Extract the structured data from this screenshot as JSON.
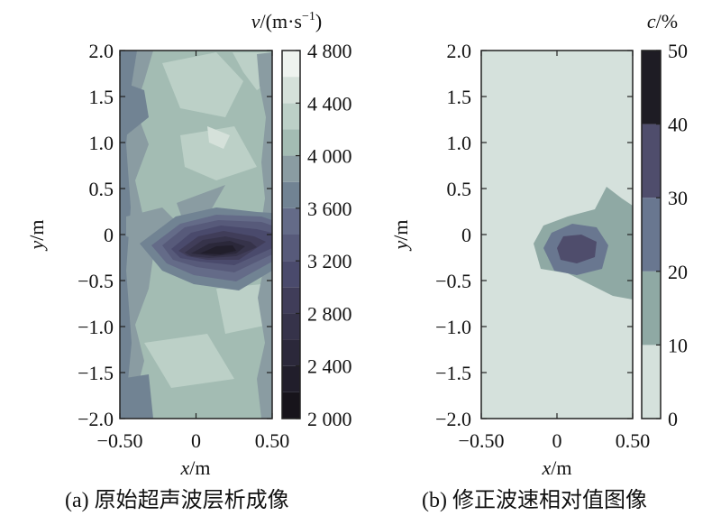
{
  "chart_data": [
    {
      "type": "heatmap",
      "subtitle": "(a) 原始超声波层析成像",
      "xlabel": "x/m",
      "ylabel": "y/m",
      "colorbar_label": "v/(m·s⁻¹)",
      "xlim": [
        -0.5,
        0.5
      ],
      "ylim": [
        -2.0,
        2.0
      ],
      "x_ticks": [
        "−0.50",
        "0",
        "0.50"
      ],
      "y_ticks": [
        "2.0",
        "1.5",
        "1.0",
        "0.5",
        "0",
        "−0.5",
        "−1.0",
        "−1.5",
        "−2.0"
      ],
      "colorbar_ticks": [
        "4 800",
        "4 400",
        "4 000",
        "3 600",
        "3 200",
        "2 800",
        "2 400",
        "2 000"
      ],
      "colorbar_range": [
        2000,
        4800
      ],
      "colorbar_levels": [
        2000,
        2200,
        2400,
        2600,
        2800,
        3000,
        3200,
        3400,
        3600,
        3800,
        4000,
        4200,
        4400,
        4600,
        4800
      ],
      "level_colors": [
        "#17141b",
        "#211e2b",
        "#2b283a",
        "#36334a",
        "#403d59",
        "#4a4a6c",
        "#575a7a",
        "#646b88",
        "#718393",
        "#8a9ca2",
        "#a3bcb3",
        "#bcd0c7",
        "#d5e1da",
        "#eef3ef"
      ],
      "regions": [
        {
          "feature": "background velocity",
          "v": 4000
        },
        {
          "feature": "low-velocity band near left edge",
          "v": 3700
        },
        {
          "feature": "anomaly halo",
          "x_range": [
            -0.3,
            0.5
          ],
          "y_range": [
            -0.45,
            0.1
          ],
          "v": 3200
        },
        {
          "feature": "anomaly core",
          "x_center": 0.15,
          "y_center": -0.2,
          "v": 2200
        }
      ]
    },
    {
      "type": "heatmap",
      "subtitle": "(b) 修正波速相对值图像",
      "xlabel": "x/m",
      "ylabel": "y/m",
      "colorbar_label": "c/%",
      "xlim": [
        -0.5,
        0.5
      ],
      "ylim": [
        -2.0,
        2.0
      ],
      "x_ticks": [
        "−0.50",
        "0",
        "0.50"
      ],
      "y_ticks": [
        "2.0",
        "1.5",
        "1.0",
        "0.5",
        "0",
        "−0.5",
        "−1.0",
        "−1.5",
        "−2.0"
      ],
      "colorbar_ticks": [
        "50",
        "40",
        "30",
        "20",
        "10",
        "0"
      ],
      "colorbar_range": [
        0,
        50
      ],
      "colorbar_levels": [
        0,
        10,
        20,
        30,
        40,
        50
      ],
      "level_colors": [
        "#d5e1dc",
        "#8fa9a4",
        "#697790",
        "#4f4d6c",
        "#1e1c24"
      ],
      "regions": [
        {
          "level_range": [
            0,
            10
          ],
          "feature": "background"
        },
        {
          "level_range": [
            10,
            20
          ],
          "x_range": [
            -0.25,
            0.5
          ],
          "y_range": [
            -0.68,
            0.55
          ]
        },
        {
          "level_range": [
            20,
            30
          ],
          "x_range": [
            -0.12,
            0.27
          ],
          "y_range": [
            -0.42,
            0.02
          ]
        },
        {
          "level_range": [
            30,
            40
          ],
          "x_center": 0.1,
          "y_center": -0.14
        }
      ]
    }
  ]
}
